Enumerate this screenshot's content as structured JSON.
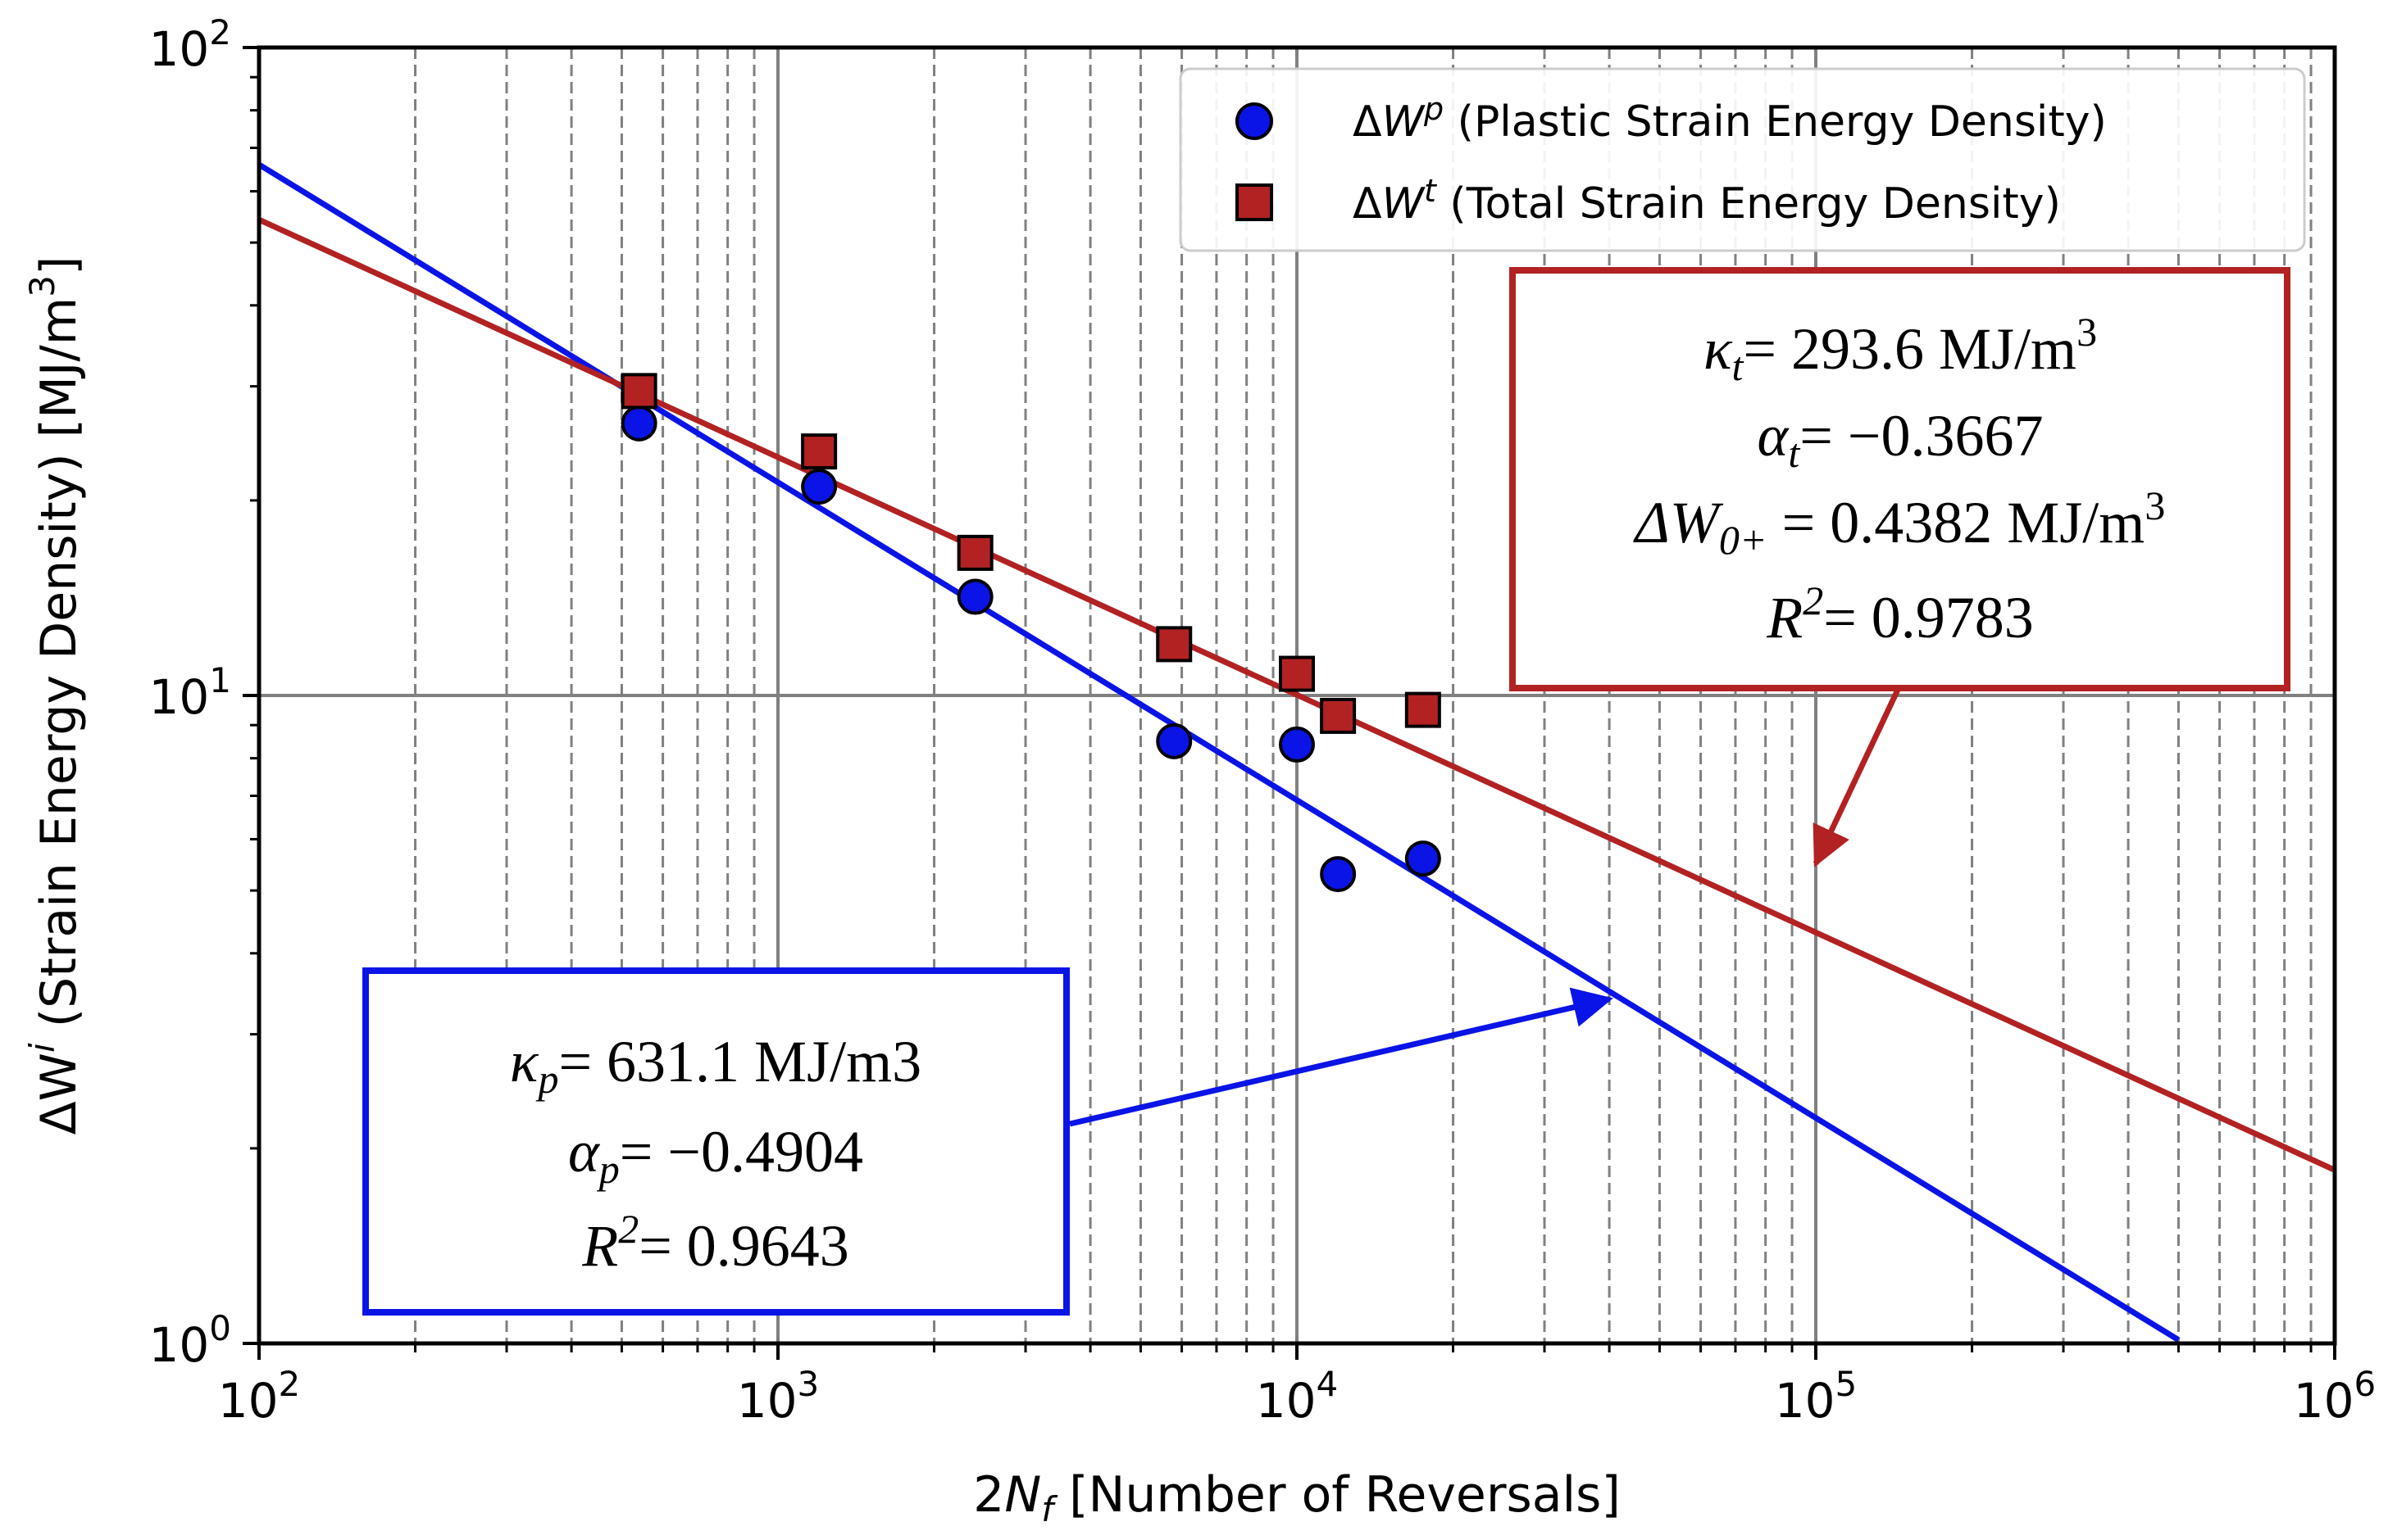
{
  "chart_data": {
    "type": "scatter",
    "xscale": "log",
    "yscale": "log",
    "xlim": [
      100,
      1000000
    ],
    "ylim": [
      1,
      100
    ],
    "grid": true,
    "x_ticks": [
      {
        "value": 100,
        "base": "10",
        "exp": "2"
      },
      {
        "value": 1000,
        "base": "10",
        "exp": "3"
      },
      {
        "value": 10000,
        "base": "10",
        "exp": "4"
      },
      {
        "value": 100000,
        "base": "10",
        "exp": "5"
      },
      {
        "value": 1000000,
        "base": "10",
        "exp": "6"
      }
    ],
    "y_ticks": [
      {
        "value": 1,
        "base": "10",
        "exp": "0"
      },
      {
        "value": 10,
        "base": "10",
        "exp": "1"
      },
      {
        "value": 100,
        "base": "10",
        "exp": "2"
      }
    ],
    "xlabel": {
      "pre": "2",
      "var": "N",
      "sub": "f",
      "post": " [Number of Reversals]"
    },
    "ylabel": {
      "pre": "ΔW",
      "sup": "i",
      "post": " (Strain Energy Density) [MJ/m",
      "unit_sup": "3",
      "end": "]"
    },
    "legend_position": "top-right",
    "series": [
      {
        "name": "Plastic Strain Energy Density",
        "symbol": "W",
        "sup": "p",
        "marker": "circle",
        "color": "#0a14e6",
        "points": [
          [
            540,
            26.3
          ],
          [
            1200,
            21.0
          ],
          [
            2400,
            14.2
          ],
          [
            5800,
            8.5
          ],
          [
            10000,
            8.4
          ],
          [
            12000,
            5.3
          ],
          [
            17500,
            5.6
          ]
        ]
      },
      {
        "name": "Total Strain Energy Density",
        "symbol": "W",
        "sup": "t",
        "marker": "square",
        "color": "#b22222",
        "points": [
          [
            540,
            29.5
          ],
          [
            1200,
            23.8
          ],
          [
            2400,
            16.6
          ],
          [
            5800,
            12.0
          ],
          [
            10000,
            10.8
          ],
          [
            12000,
            9.3
          ],
          [
            17500,
            9.5
          ]
        ]
      }
    ],
    "fits": [
      {
        "name": "plastic-fit",
        "color": "#0a14e6",
        "kappa": 631.1,
        "alpha": -0.4904,
        "x_range": [
          100,
          500000
        ]
      },
      {
        "name": "total-fit",
        "color": "#b22222",
        "kappa": 293.6,
        "alpha": -0.3667,
        "x_range": [
          100,
          1000000
        ]
      }
    ],
    "annotations": {
      "total": {
        "color": "#b22222",
        "kappa_label": "κ",
        "kappa_sub": "t",
        "kappa_value": "= 293.6 MJ/m",
        "kappa_unit_sup": "3",
        "alpha_label": "α",
        "alpha_sub": "t",
        "alpha_value": "= −0.3667",
        "w0_label": "ΔW",
        "w0_sub": "0+",
        "w0_value": " = 0.4382 MJ/m",
        "w0_unit_sup": "3",
        "r2_label": "R",
        "r2_sup": "2",
        "r2_value": "= 0.9783",
        "arrow_target": [
          100000,
          5.5
        ]
      },
      "plastic": {
        "color": "#0a14e6",
        "kappa_label": "κ",
        "kappa_sub": "p",
        "kappa_value": "= 631.1 MJ/m3",
        "alpha_label": "α",
        "alpha_sub": "p",
        "alpha_value": "= −0.4904",
        "r2_label": "R",
        "r2_sup": "2",
        "r2_value": "= 0.9643",
        "arrow_target": [
          40000,
          3.4
        ]
      }
    }
  }
}
